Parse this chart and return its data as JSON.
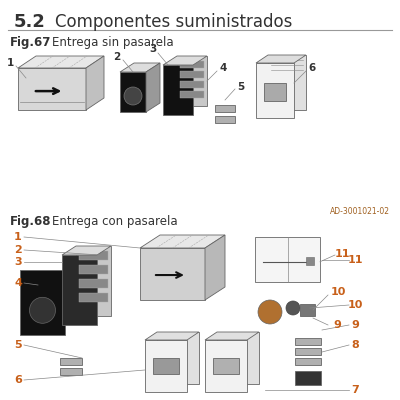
{
  "title_num": "5.2",
  "title_text": "Componentes suministrados",
  "fig67_label": "Fig.67",
  "fig67_title": "Entrega sin pasarela",
  "fig68_label": "Fig.68",
  "fig68_title": "Entrega con pasarela",
  "ad_code": "AD-3001021-02",
  "bg_color": "#ffffff",
  "title_color": "#333333",
  "label_color": "#333333",
  "num_color": "#333333",
  "line_color": "#888888",
  "dark_fill": "#111111",
  "mid_gray": "#aaaaaa",
  "light_gray": "#dddddd",
  "edge_color": "#666666",
  "orange_num": "#c8601a"
}
